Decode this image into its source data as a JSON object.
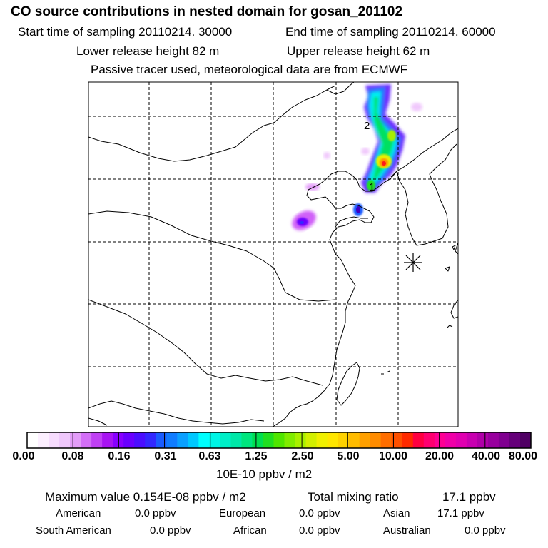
{
  "header": {
    "title": "CO  source contributions in nested domain for gosan_201102",
    "start_time": "Start time of sampling 20110214. 30000",
    "end_time": "End time of sampling 20110214. 60000",
    "lower_release": "Lower release height   82 m",
    "upper_release": "Upper release height   62 m",
    "tracer_note": "Passive tracer used, meteorological data are from ECMWF"
  },
  "map": {
    "contour_labels": [
      "2",
      "1"
    ],
    "receptor_marker": "gosan-receptor-star"
  },
  "colorbar": {
    "tick_labels": [
      "0.00",
      "0.08",
      "0.16",
      "0.31",
      "0.63",
      "1.25",
      "2.50",
      "5.00",
      "10.00",
      "20.00",
      "40.00",
      "80.00"
    ],
    "units": "10E-10 ppbv / m2",
    "colors": [
      "#ffffff",
      "#fcefff",
      "#f7dcfe",
      "#f0c8fc",
      "#e39cf9",
      "#d36ef7",
      "#c040f4",
      "#a814f2",
      "#8800ff",
      "#6a00ff",
      "#4b0eff",
      "#3328ff",
      "#1a5cff",
      "#107cff",
      "#0aa0ff",
      "#00c8ff",
      "#00ffff",
      "#00f5e6",
      "#00f0c8",
      "#00e8a8",
      "#00e67e",
      "#00e050",
      "#20e020",
      "#50e600",
      "#80ec00",
      "#a8f000",
      "#d2f000",
      "#f0f000",
      "#ffe600",
      "#ffd200",
      "#ffbc00",
      "#ffa000",
      "#ff8c00",
      "#ff6e00",
      "#ff5000",
      "#ff2a00",
      "#ff0040",
      "#ff0070",
      "#ff0094",
      "#f000a8",
      "#e000b0",
      "#c800b0",
      "#b000a8",
      "#98009e",
      "#800090",
      "#66007a",
      "#500064"
    ]
  },
  "summary": {
    "max_value": "Maximum value  0.154E-08 ppbv / m2",
    "total_mixing": "Total mixing ratio",
    "total_mixing_value": "17.1 ppbv",
    "sources": [
      {
        "name": "American",
        "value": "0.0 ppbv"
      },
      {
        "name": "European",
        "value": "0.0 ppbv"
      },
      {
        "name": "Asian",
        "value": "17.1 ppbv"
      },
      {
        "name": "South American",
        "value": "0.0 ppbv"
      },
      {
        "name": "African",
        "value": "0.0 ppbv"
      },
      {
        "name": "Australian",
        "value": "0.0 ppbv"
      }
    ]
  }
}
